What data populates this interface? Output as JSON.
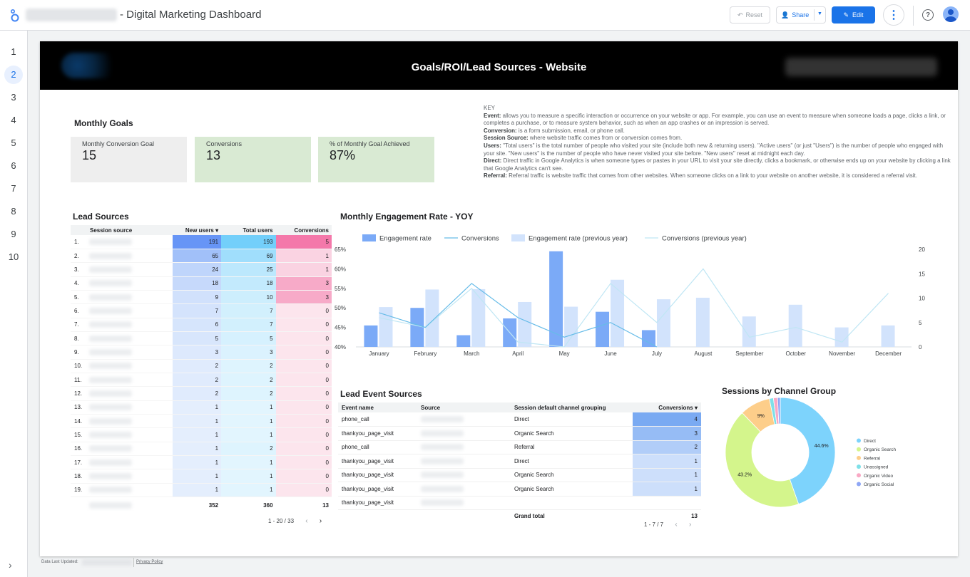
{
  "app": {
    "title": "- Digital Marketing Dashboard",
    "reset_label": "Reset",
    "share_label": "Share",
    "edit_label": "Edit"
  },
  "pages": [
    "1",
    "2",
    "3",
    "4",
    "5",
    "6",
    "7",
    "8",
    "9",
    "10"
  ],
  "active_page": 2,
  "report": {
    "banner_title": "Goals/ROI/Lead Sources - Website",
    "monthly_goals_title": "Monthly Goals",
    "cards": [
      {
        "label": "Monthly Conversion Goal",
        "value": "15",
        "color": "#eeeeee"
      },
      {
        "label": "Conversions",
        "value": "13",
        "color": "#d9ead3"
      },
      {
        "label": "% of Monthly Goal Achieved",
        "value": "87%",
        "color": "#d9ead3"
      }
    ],
    "key": {
      "heading": "KEY",
      "items": [
        {
          "term": "Event:",
          "text": " allows you to measure a specific interaction or occurrence on your website or app. For example, you can use an event to measure when someone loads a page, clicks a link, or completes a purchase, or to measure system behavior, such as when an app crashes or an impression is served."
        },
        {
          "term": "Conversion:",
          "text": " is a form submission, email, or phone call."
        },
        {
          "term": "Session Source:",
          "text": " where website traffic comes from or conversion comes from."
        },
        {
          "term": "Users:",
          "text": " \"Total users\" is the total number of people who visited your site (include both new & returning users). \"Active users\" (or just \"Users\") is the number of people who engaged with your site. \"New users\" is the number of people who have never visited your site before. \"New users\" reset at midnight each day."
        },
        {
          "term": "Direct:",
          "text": " Direct traffic in Google Analytics is when someone types or pastes in your URL to visit your site directly, clicks a bookmark, or otherwise ends up on your website by clicking a link that Google Analytics can't see."
        },
        {
          "term": "Referral:",
          "text": " Referral traffic is website traffic that comes from other websites. When someone clicks on a link to your website on another website, it is considered a referral visit."
        }
      ]
    },
    "lead_sources": {
      "title": "Lead Sources",
      "headers": [
        "Session source",
        "New users ▾",
        "Total users",
        "Conversions"
      ],
      "rows": [
        {
          "n": "1.",
          "new": "191",
          "total": "193",
          "conv": "5"
        },
        {
          "n": "2.",
          "new": "65",
          "total": "69",
          "conv": "1"
        },
        {
          "n": "3.",
          "new": "24",
          "total": "25",
          "conv": "1"
        },
        {
          "n": "4.",
          "new": "18",
          "total": "18",
          "conv": "3"
        },
        {
          "n": "5.",
          "new": "9",
          "total": "10",
          "conv": "3"
        },
        {
          "n": "6.",
          "new": "7",
          "total": "7",
          "conv": "0"
        },
        {
          "n": "7.",
          "new": "6",
          "total": "7",
          "conv": "0"
        },
        {
          "n": "8.",
          "new": "5",
          "total": "5",
          "conv": "0"
        },
        {
          "n": "9.",
          "new": "3",
          "total": "3",
          "conv": "0"
        },
        {
          "n": "10.",
          "new": "2",
          "total": "2",
          "conv": "0"
        },
        {
          "n": "11.",
          "new": "2",
          "total": "2",
          "conv": "0"
        },
        {
          "n": "12.",
          "new": "2",
          "total": "2",
          "conv": "0"
        },
        {
          "n": "13.",
          "new": "1",
          "total": "1",
          "conv": "0"
        },
        {
          "n": "14.",
          "new": "1",
          "total": "1",
          "conv": "0"
        },
        {
          "n": "15.",
          "new": "1",
          "total": "1",
          "conv": "0"
        },
        {
          "n": "16.",
          "new": "1",
          "total": "2",
          "conv": "0"
        },
        {
          "n": "17.",
          "new": "1",
          "total": "1",
          "conv": "0"
        },
        {
          "n": "18.",
          "new": "1",
          "total": "1",
          "conv": "0"
        },
        {
          "n": "19.",
          "new": "1",
          "total": "1",
          "conv": "0"
        }
      ],
      "totals": {
        "new": "352",
        "total": "360",
        "conv": "13"
      },
      "pager": "1 - 20 / 33"
    },
    "engagement": {
      "title": "Monthly Engagement Rate - YOY",
      "legend": [
        "Engagement rate",
        "Conversions",
        "Engagement rate (previous year)",
        "Conversions (previous year)"
      ],
      "y_left_ticks": [
        "65%",
        "60%",
        "55%",
        "50%",
        "45%",
        "40%"
      ],
      "y_right_ticks": [
        "20",
        "15",
        "10",
        "5",
        "0"
      ]
    },
    "lead_events": {
      "title": "Lead Event Sources",
      "headers": [
        "Event name",
        "Source",
        "Session default channel grouping",
        "Conversions ▾"
      ],
      "rows": [
        {
          "event": "phone_call",
          "channel": "Direct",
          "conv": "4"
        },
        {
          "event": "thankyou_page_visit",
          "channel": "Organic Search",
          "conv": "3"
        },
        {
          "event": "phone_call",
          "channel": "Referral",
          "conv": "2"
        },
        {
          "event": "thankyou_page_visit",
          "channel": "Direct",
          "conv": "1"
        },
        {
          "event": "thankyou_page_visit",
          "channel": "Organic Search",
          "conv": "1"
        },
        {
          "event": "thankyou_page_visit",
          "channel": "Organic Search",
          "conv": "1"
        },
        {
          "event": "thankyou_page_visit",
          "channel": "",
          "conv": ""
        }
      ],
      "grand_total_label": "Grand total",
      "grand_total": "13",
      "pager": "1 - 7 / 7"
    },
    "sessions": {
      "title": "Sessions by Channel Group"
    }
  },
  "footer": {
    "updated_label": "Data Last Updated:",
    "privacy_label": "Privacy Policy"
  },
  "chart_data": [
    {
      "type": "bar",
      "title": "Monthly Engagement Rate - YOY",
      "categories": [
        "January",
        "February",
        "March",
        "April",
        "May",
        "June",
        "July",
        "August",
        "September",
        "October",
        "November",
        "December"
      ],
      "series": [
        {
          "name": "Engagement rate",
          "axis": "left",
          "kind": "bar",
          "values": [
            45.5,
            50,
            43,
            47.3,
            64.5,
            49,
            44.3,
            null,
            null,
            null,
            null,
            null
          ]
        },
        {
          "name": "Engagement rate (previous year)",
          "axis": "left",
          "kind": "bar",
          "values": [
            50.2,
            54.7,
            54.8,
            51.5,
            50.3,
            57.2,
            52.2,
            52.6,
            47.8,
            50.8,
            45,
            45.5
          ]
        },
        {
          "name": "Conversions",
          "axis": "right",
          "kind": "line",
          "values": [
            7,
            4,
            13,
            6,
            2,
            5,
            0,
            null,
            null,
            null,
            null,
            null
          ]
        },
        {
          "name": "Conversions (previous year)",
          "axis": "right",
          "kind": "line",
          "values": [
            6,
            4,
            12,
            1,
            0,
            13,
            5,
            16,
            2,
            4,
            1,
            11
          ]
        }
      ],
      "ylim_left": [
        40,
        65
      ],
      "ylim_right": [
        0,
        20
      ],
      "colors": {
        "Engagement rate": "#7baaf7",
        "Engagement rate (previous year)": "#d2e3fc",
        "Conversions": "#67bce8",
        "Conversions (previous year)": "#bfe6f4"
      },
      "legend": "top"
    },
    {
      "type": "pie",
      "title": "Sessions by Channel Group",
      "labels": [
        "Direct",
        "Organic Search",
        "Referral",
        "Unassigned",
        "Organic Video",
        "Organic Social"
      ],
      "values": [
        44.6,
        43.2,
        9,
        1.2,
        1.2,
        0.8
      ],
      "data_labels": [
        "44.6%",
        "43.2%",
        "9%",
        "",
        "",
        ""
      ],
      "colors": [
        "#7dd3fc",
        "#d4f58c",
        "#fdce8a",
        "#7ee0e8",
        "#f9a8c4",
        "#8ea6f5"
      ],
      "donut": true,
      "legend": "right"
    }
  ]
}
